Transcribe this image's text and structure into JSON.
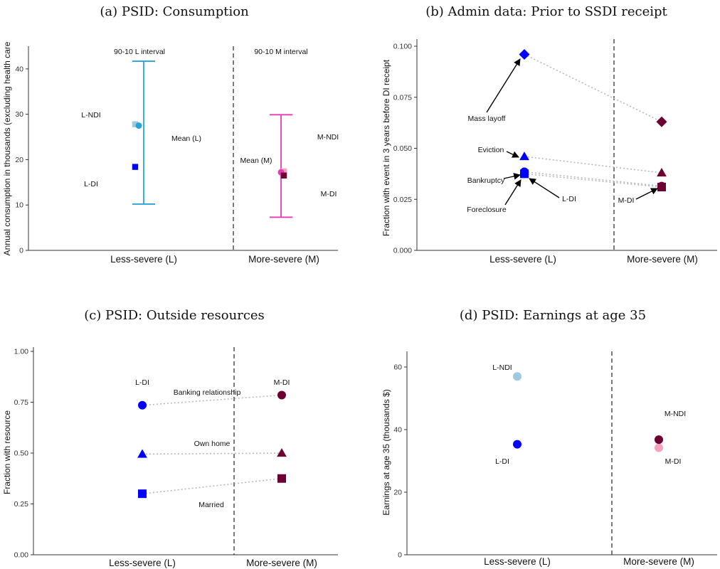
{
  "chart_data": [
    {
      "type": "scatter",
      "title": "(a) PSID: Consumption",
      "ylabel": "Annual consumption in thousands (excluding health care",
      "ylim": [
        0,
        45
      ],
      "yticks": [
        0,
        10,
        20,
        30,
        40
      ],
      "categories": [
        "Less-severe (L)",
        "More-severe (M)"
      ],
      "series": [
        {
          "name": "L-NDI",
          "category": "Less-severe (L)",
          "value": 27.8,
          "color": "#9ecae1",
          "marker": "square"
        },
        {
          "name": "Mean (L)",
          "category": "Less-severe (L)",
          "value": 27.5,
          "color": "#29a3dc",
          "marker": "circle"
        },
        {
          "name": "L-DI",
          "category": "Less-severe (L)",
          "value": 18.4,
          "color": "#0000ff",
          "marker": "square"
        },
        {
          "name": "M-NDI",
          "category": "More-severe (M)",
          "value": 17.4,
          "color": "#f4a3b8",
          "marker": "square"
        },
        {
          "name": "Mean (M)",
          "category": "More-severe (M)",
          "value": 17.2,
          "color": "#e83ab5",
          "marker": "circle"
        },
        {
          "name": "M-DI",
          "category": "More-severe (M)",
          "value": 16.5,
          "color": "#6d0033",
          "marker": "square"
        }
      ],
      "intervals": [
        {
          "name": "90-10 L interval",
          "category": "Less-severe (L)",
          "low": 10.2,
          "high": 41.7,
          "color": "#29a3dc"
        },
        {
          "name": "90-10 M interval",
          "category": "More-severe (M)",
          "low": 7.3,
          "high": 29.9,
          "color": "#e83ab5"
        }
      ],
      "annotations": [
        "90-10 L interval",
        "90-10 M interval",
        "L-NDI",
        "Mean (L)",
        "L-DI",
        "Mean (M)",
        "M-NDI",
        "M-DI"
      ]
    },
    {
      "type": "scatter",
      "title": "(b) Admin data:  Prior to SSDI receipt",
      "ylabel": "Fraction with event in 3 years before DI receipt",
      "ylim": [
        0,
        0.1
      ],
      "yticks": [
        "0.000",
        "0.025",
        "0.050",
        "0.075",
        "0.100"
      ],
      "categories": [
        "Less-severe (L)",
        "More-severe (M)"
      ],
      "series": [
        {
          "name": "Mass layoff",
          "marker": "diamond",
          "values": [
            0.096,
            0.063
          ]
        },
        {
          "name": "Eviction",
          "marker": "triangle",
          "values": [
            0.046,
            0.038
          ]
        },
        {
          "name": "Bankruptcy",
          "marker": "circle",
          "values": [
            0.0385,
            0.0315
          ]
        },
        {
          "name": "Foreclosure",
          "marker": "square",
          "values": [
            0.0375,
            0.031
          ]
        }
      ],
      "colors": {
        "L": "#0000ff",
        "M": "#6d0033"
      },
      "annotations": [
        "Mass layoff",
        "Eviction",
        "Bankruptcy",
        "Foreclosure",
        "L-DI",
        "M-DI"
      ]
    },
    {
      "type": "scatter",
      "title": "(c) PSID: Outside resources",
      "ylabel": "Fraction with resource",
      "ylim": [
        0,
        1
      ],
      "yticks": [
        "0.00",
        "0.25",
        "0.50",
        "0.75",
        "1.00"
      ],
      "categories": [
        "Less-severe (L)",
        "More-severe (M)"
      ],
      "series": [
        {
          "name": "Banking relationship",
          "marker": "circle",
          "values": [
            0.735,
            0.785
          ]
        },
        {
          "name": "Own home",
          "marker": "triangle",
          "values": [
            0.495,
            0.5
          ]
        },
        {
          "name": "Married",
          "marker": "square",
          "values": [
            0.3,
            0.375
          ]
        }
      ],
      "colors": {
        "L": "#0000ff",
        "M": "#6d0033"
      },
      "annotations": [
        "L-DI",
        "M-DI",
        "Banking relationship",
        "Own home",
        "Married"
      ]
    },
    {
      "type": "scatter",
      "title": "(d) PSID: Earnings at age 35",
      "ylabel": "Earnings at age 35 (thousands $)",
      "ylim": [
        0,
        65
      ],
      "yticks": [
        0,
        20,
        40,
        60
      ],
      "categories": [
        "Less-severe (L)",
        "More-severe (M)"
      ],
      "series": [
        {
          "name": "L-NDI",
          "category": "Less-severe (L)",
          "value": 57,
          "color": "#9ecae1"
        },
        {
          "name": "L-DI",
          "category": "Less-severe (L)",
          "value": 35.3,
          "color": "#0000ff"
        },
        {
          "name": "M-NDI",
          "category": "More-severe (M)",
          "value": 34.2,
          "color": "#f4a3b8"
        },
        {
          "name": "M-DI",
          "category": "More-severe (M)",
          "value": 36.8,
          "color": "#6d0033"
        }
      ],
      "annotations": [
        "L-NDI",
        "L-DI",
        "M-NDI",
        "M-DI"
      ]
    }
  ]
}
